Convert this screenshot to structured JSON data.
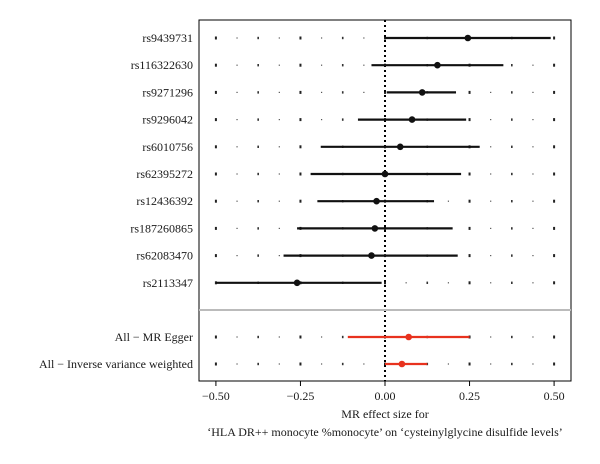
{
  "chart_data": {
    "type": "forest",
    "xlabel_line1": "MR effect size for",
    "xlabel_line2": "‘HLA DR++ monocyte %monocyte’ on ‘cysteinylglycine disulfide levels’",
    "xlim": [
      -0.55,
      0.55
    ],
    "xticks": [
      -0.5,
      -0.25,
      0.0,
      0.25,
      0.5
    ],
    "xtick_labels": [
      "−0.50",
      "−0.25",
      "0.00",
      "0.25",
      "0.50"
    ],
    "reference_line_x": 0,
    "snps": [
      {
        "label": "rs9439731",
        "estimate": 0.245,
        "lower": 0.0,
        "upper": 0.49
      },
      {
        "label": "rs116322630",
        "estimate": 0.155,
        "lower": -0.04,
        "upper": 0.35
      },
      {
        "label": "rs9271296",
        "estimate": 0.11,
        "lower": 0.005,
        "upper": 0.21
      },
      {
        "label": "rs9296042",
        "estimate": 0.08,
        "lower": -0.08,
        "upper": 0.24
      },
      {
        "label": "rs6010756",
        "estimate": 0.045,
        "lower": -0.19,
        "upper": 0.28
      },
      {
        "label": "rs62395272",
        "estimate": 0.0,
        "lower": -0.22,
        "upper": 0.225
      },
      {
        "label": "rs12436392",
        "estimate": -0.025,
        "lower": -0.2,
        "upper": 0.145
      },
      {
        "label": "rs187260865",
        "estimate": -0.03,
        "lower": -0.26,
        "upper": 0.2
      },
      {
        "label": "rs62083470",
        "estimate": -0.04,
        "lower": -0.3,
        "upper": 0.215
      },
      {
        "label": "rs2113347",
        "estimate": -0.26,
        "lower": -0.5,
        "upper": -0.01
      }
    ],
    "summary": [
      {
        "label": "All − MR Egger",
        "estimate": 0.07,
        "lower": -0.11,
        "upper": 0.25
      },
      {
        "label": "All − Inverse variance weighted",
        "estimate": 0.05,
        "lower": -0.0,
        "upper": 0.125
      }
    ],
    "colors": {
      "snp": "#111111",
      "summary": "#e8321e",
      "divider": "#bbbbbb"
    }
  }
}
